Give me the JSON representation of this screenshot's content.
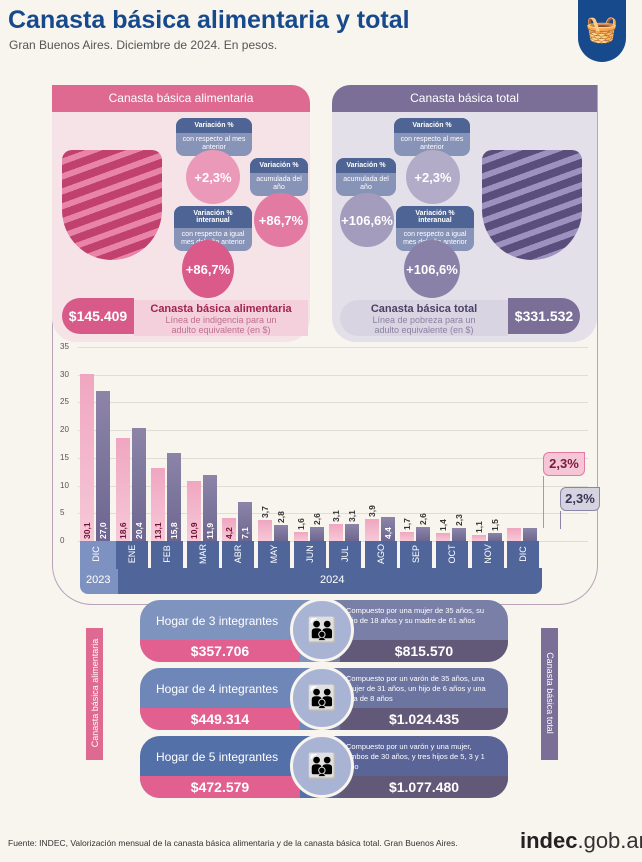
{
  "header": {
    "title": "Canasta básica alimentaria y total",
    "subtitle": "Gran Buenos Aires. Diciembre de 2024. En pesos.",
    "logo_icon": "basket-icon"
  },
  "cba": {
    "title": "Canasta básica alimentaria",
    "var_mensual": {
      "label": "Variación %",
      "sub": "con respecto al mes anterior",
      "value": "+2,3%"
    },
    "var_acum": {
      "label": "Variación %",
      "sub": "acumulada del año",
      "value": "+86,7%"
    },
    "var_inter": {
      "label": "Variación % interanual",
      "sub": "con respecto a igual mes del año anterior",
      "value": "+86,7%"
    },
    "price": "$145.409",
    "price_title": "Canasta básica alimentaria",
    "price_sub": "Línea de indigencia para un adulto equivalente (en $)"
  },
  "cbt": {
    "title": "Canasta básica total",
    "var_mensual": {
      "label": "Variación %",
      "sub": "con respecto al mes anterior",
      "value": "+2,3%"
    },
    "var_acum": {
      "label": "Variación %",
      "sub": "acumulada del año",
      "value": "+106,6%"
    },
    "var_inter": {
      "label": "Variación % interanual",
      "sub": "con respecto a igual mes del año anterior",
      "value": "+106,6%"
    },
    "price": "$331.532",
    "price_title": "Canasta básica total",
    "price_sub": "Línea de pobreza para un adulto equivalente (en $)"
  },
  "chart_data": {
    "type": "bar",
    "title": "",
    "ylim": [
      0,
      35
    ],
    "yticks": [
      "0",
      "5",
      "10",
      "15",
      "20",
      "25",
      "30",
      "35"
    ],
    "categories": [
      "DIC",
      "ENE",
      "FEB",
      "MAR",
      "ABR",
      "MAY",
      "JUN",
      "JUL",
      "AGO",
      "SEP",
      "OCT",
      "NOV",
      "DIC"
    ],
    "years": [
      "2023",
      "2024"
    ],
    "series": [
      {
        "name": "Canasta básica alimentaria",
        "color": "#f0a6c0",
        "values": [
          30.1,
          18.6,
          13.1,
          10.9,
          4.2,
          3.7,
          1.6,
          3.1,
          3.9,
          1.7,
          1.4,
          1.1,
          2.3
        ],
        "labels": [
          "30,1",
          "18,6",
          "13,1",
          "10,9",
          "4,2",
          "3,7",
          "1,6",
          "3,1",
          "3,9",
          "1,7",
          "1,4",
          "1,1",
          ""
        ]
      },
      {
        "name": "Canasta básica total",
        "color": "#8c85a8",
        "values": [
          27.0,
          20.4,
          15.8,
          11.9,
          7.1,
          2.8,
          2.6,
          3.1,
          4.4,
          2.6,
          2.3,
          1.5,
          2.3
        ],
        "labels": [
          "27,0",
          "20,4",
          "15,8",
          "11,9",
          "7,1",
          "2,8",
          "2,6",
          "3,1",
          "4,4",
          "2,6",
          "2,3",
          "1,5",
          ""
        ]
      }
    ],
    "callouts": [
      "2,3%",
      "2,3%"
    ]
  },
  "hogares": {
    "side_left": "Canasta básica alimentaria",
    "side_right": "Canasta básica total",
    "rows": [
      {
        "name": "Hogar de 3 integrantes",
        "cba": "$357.706",
        "cbt": "$815.570",
        "desc": "Compuesto por una mujer de 35 años, su hijo de 18 años y su madre de 61 años"
      },
      {
        "name": "Hogar de 4 integrantes",
        "cba": "$449.314",
        "cbt": "$1.024.435",
        "desc": "Compuesto por un varón de 35 años, una mujer de 31 años, un hijo de 6 años y una hija de 8 años"
      },
      {
        "name": "Hogar de 5 integrantes",
        "cba": "$472.579",
        "cbt": "$1.077.480",
        "desc": "Compuesto por un varón y una mujer, ambos de 30 años, y tres hijos de 5, 3 y 1 año"
      }
    ]
  },
  "footer": {
    "source": "Fuente: INDEC, Valorización mensual de la canasta básica alimentaria y de la canasta básica total. Gran Buenos Aires.",
    "brand_a": "indec",
    "brand_b": ".gob.ar"
  }
}
